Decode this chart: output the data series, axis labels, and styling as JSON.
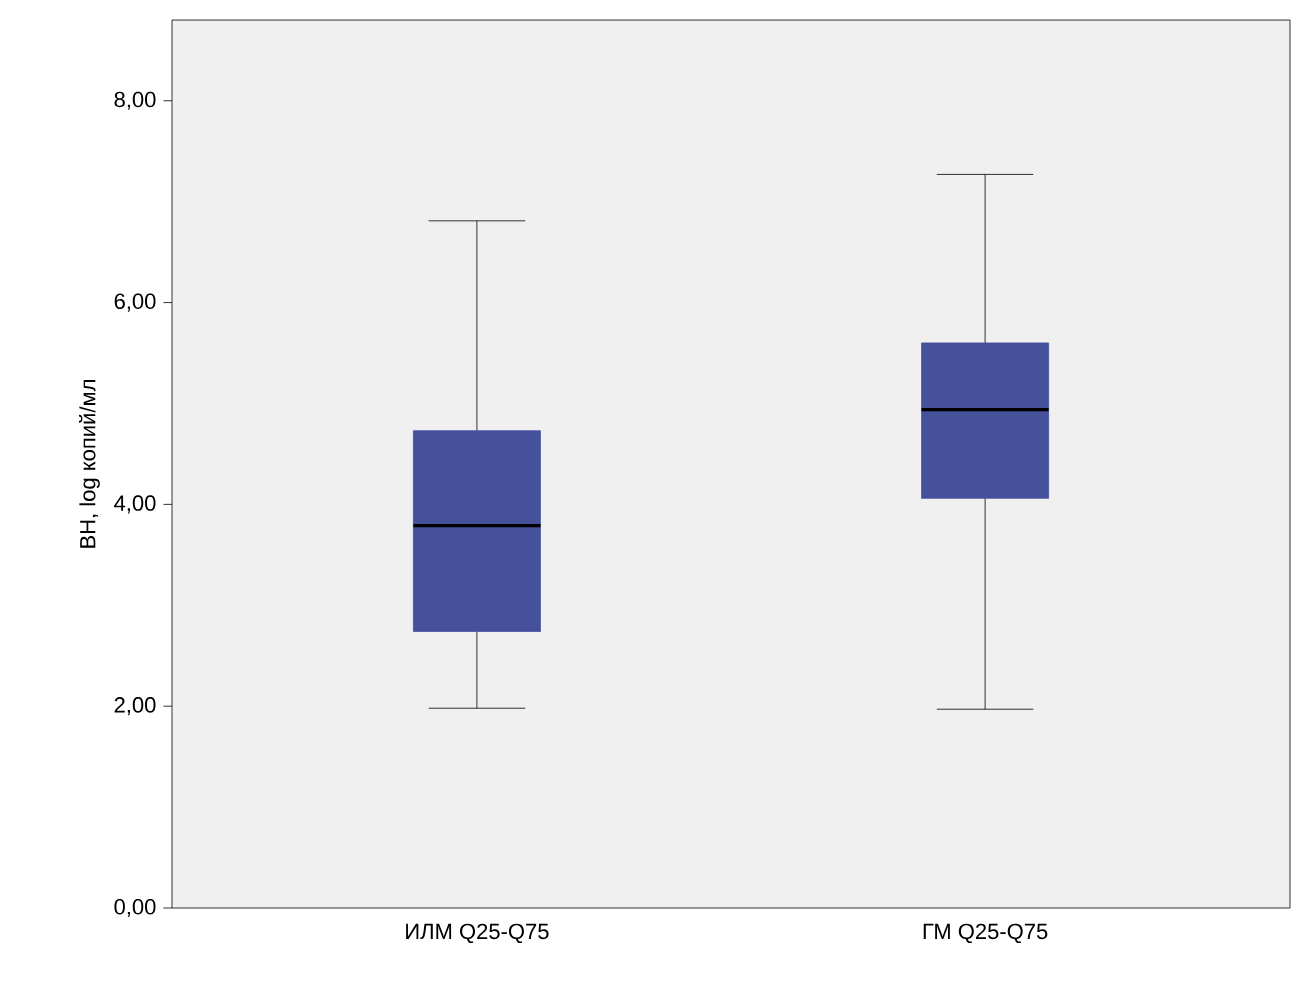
{
  "chart_data": {
    "type": "box",
    "ylabel": "ВН, log копий/мл",
    "categories": [
      "ИЛМ Q25-Q75",
      "ГМ Q25-Q75"
    ],
    "boxes": [
      {
        "low": 1.98,
        "q1": 2.74,
        "median": 3.79,
        "q3": 4.73,
        "high": 6.81
      },
      {
        "low": 1.97,
        "q1": 4.06,
        "median": 4.94,
        "q3": 5.6,
        "high": 7.27
      }
    ],
    "color": "#45529b",
    "ylim": [
      0,
      8.8
    ],
    "yticks": [
      {
        "value": 0,
        "label": "0,00"
      },
      {
        "value": 2,
        "label": "2,00"
      },
      {
        "value": 4,
        "label": "4,00"
      },
      {
        "value": 6,
        "label": "6,00"
      },
      {
        "value": 8,
        "label": "8,00"
      }
    ]
  }
}
